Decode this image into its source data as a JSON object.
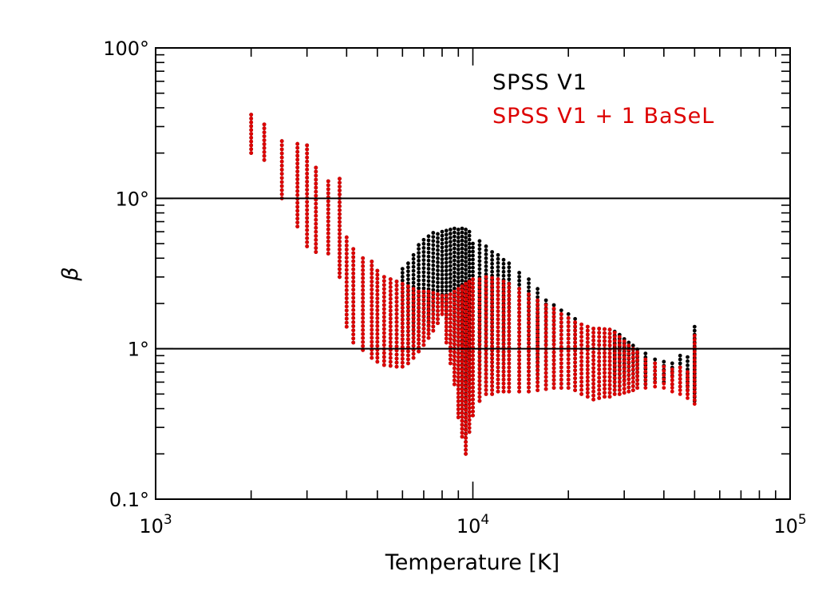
{
  "chart_data": {
    "type": "scatter",
    "xlabel": "Temperature [K]",
    "ylabel": "β",
    "x_scale": "log",
    "y_scale": "log",
    "xlim": [
      1000,
      100000
    ],
    "ylim": [
      0.1,
      100
    ],
    "x_tick_labels": [
      {
        "value": 1000,
        "base": "10",
        "exp": "3"
      },
      {
        "value": 10000,
        "base": "10",
        "exp": "4"
      },
      {
        "value": 100000,
        "base": "10",
        "exp": "5"
      }
    ],
    "y_tick_labels": [
      {
        "value": 0.1,
        "label": "0.1°"
      },
      {
        "value": 1,
        "label": "1°"
      },
      {
        "value": 10,
        "label": "10°"
      },
      {
        "value": 100,
        "label": "100°"
      }
    ],
    "reference_lines": [
      1,
      10
    ],
    "legend_position": "top-right",
    "colors": {
      "axes": "#000000",
      "series_1": "#000000",
      "series_2": "#dd0000"
    },
    "series": [
      {
        "name": "SPSS V1",
        "color": "#000000",
        "columns": [
          [
            2000,
            20,
            36
          ],
          [
            2200,
            18,
            31
          ],
          [
            2500,
            10,
            24
          ],
          [
            2800,
            6.5,
            23
          ],
          [
            3000,
            4.8,
            22.5
          ],
          [
            3200,
            4.4,
            16
          ],
          [
            3500,
            4.3,
            13
          ],
          [
            3800,
            3.0,
            13.5
          ],
          [
            4000,
            1.4,
            5.5
          ],
          [
            4200,
            1.1,
            4.6
          ],
          [
            4500,
            0.98,
            4.0
          ],
          [
            4800,
            0.87,
            3.8
          ],
          [
            5000,
            0.82,
            3.3
          ],
          [
            5250,
            0.78,
            3.0
          ],
          [
            5500,
            0.77,
            2.9
          ],
          [
            5750,
            0.76,
            2.8
          ],
          [
            6000,
            0.76,
            3.4
          ],
          [
            6250,
            0.8,
            3.7
          ],
          [
            6500,
            0.87,
            4.2
          ],
          [
            6750,
            0.96,
            4.9
          ],
          [
            7000,
            1.06,
            5.3
          ],
          [
            7250,
            1.18,
            5.6
          ],
          [
            7500,
            1.32,
            5.9
          ],
          [
            7750,
            1.48,
            5.8
          ],
          [
            8000,
            1.7,
            6.0
          ],
          [
            8250,
            1.1,
            6.1
          ],
          [
            8500,
            0.8,
            6.2
          ],
          [
            8750,
            0.58,
            6.3
          ],
          [
            9000,
            0.35,
            6.2
          ],
          [
            9250,
            0.26,
            6.3
          ],
          [
            9500,
            0.2,
            6.2
          ],
          [
            9750,
            0.28,
            6.0
          ],
          [
            10000,
            0.36,
            5.0
          ],
          [
            10500,
            0.45,
            5.2
          ],
          [
            11000,
            0.5,
            4.8
          ],
          [
            11500,
            0.5,
            4.4
          ],
          [
            12000,
            0.52,
            4.2
          ],
          [
            12500,
            0.52,
            3.9
          ],
          [
            13000,
            0.52,
            3.7
          ],
          [
            14000,
            0.52,
            3.2
          ],
          [
            15000,
            0.52,
            2.9
          ],
          [
            16000,
            0.53,
            2.5
          ],
          [
            17000,
            0.54,
            2.1
          ],
          [
            18000,
            0.55,
            1.95
          ],
          [
            19000,
            0.55,
            1.8
          ],
          [
            20000,
            0.55,
            1.7
          ],
          [
            21000,
            0.53,
            1.58
          ],
          [
            22000,
            0.5,
            1.45
          ],
          [
            23000,
            0.48,
            1.4
          ],
          [
            24000,
            0.46,
            1.36
          ],
          [
            25000,
            0.47,
            1.36
          ],
          [
            26000,
            0.48,
            1.35
          ],
          [
            27000,
            0.48,
            1.34
          ],
          [
            28000,
            0.5,
            1.3
          ],
          [
            29000,
            0.5,
            1.24
          ],
          [
            30000,
            0.51,
            1.16
          ],
          [
            31000,
            0.52,
            1.1
          ],
          [
            32000,
            0.53,
            1.05
          ],
          [
            33000,
            0.55,
            0.99
          ],
          [
            35000,
            0.58,
            0.93
          ],
          [
            37500,
            0.6,
            0.85
          ],
          [
            40000,
            0.6,
            0.82
          ],
          [
            42500,
            0.58,
            0.8
          ],
          [
            45000,
            0.56,
            0.9
          ],
          [
            47500,
            0.5,
            0.88
          ],
          [
            50000,
            0.45,
            1.4
          ]
        ]
      },
      {
        "name": "SPSS V1 + 1 BaSeL",
        "color": "#dd0000",
        "columns": [
          [
            2000,
            20,
            36
          ],
          [
            2200,
            18,
            31
          ],
          [
            2500,
            10,
            24
          ],
          [
            2800,
            6.5,
            23
          ],
          [
            3000,
            4.8,
            22.5
          ],
          [
            3200,
            4.4,
            16
          ],
          [
            3500,
            4.3,
            13
          ],
          [
            3800,
            3.0,
            13.5
          ],
          [
            4000,
            1.4,
            5.5
          ],
          [
            4200,
            1.1,
            4.6
          ],
          [
            4500,
            0.98,
            4.0
          ],
          [
            4800,
            0.87,
            3.8
          ],
          [
            5000,
            0.82,
            3.3
          ],
          [
            5250,
            0.78,
            3.0
          ],
          [
            5500,
            0.77,
            2.9
          ],
          [
            5750,
            0.76,
            2.8
          ],
          [
            6000,
            0.76,
            2.7
          ],
          [
            6250,
            0.8,
            2.6
          ],
          [
            6500,
            0.87,
            2.5
          ],
          [
            6750,
            0.96,
            2.4
          ],
          [
            7000,
            1.06,
            2.4
          ],
          [
            7250,
            1.18,
            2.4
          ],
          [
            7500,
            1.32,
            2.35
          ],
          [
            7750,
            1.48,
            2.3
          ],
          [
            8000,
            1.7,
            2.25
          ],
          [
            8250,
            1.1,
            2.25
          ],
          [
            8500,
            0.8,
            2.3
          ],
          [
            8750,
            0.58,
            2.4
          ],
          [
            9000,
            0.35,
            2.5
          ],
          [
            9250,
            0.26,
            2.6
          ],
          [
            9500,
            0.2,
            2.7
          ],
          [
            9750,
            0.28,
            2.8
          ],
          [
            10000,
            0.36,
            2.9
          ],
          [
            10500,
            0.45,
            2.9
          ],
          [
            11000,
            0.5,
            3.0
          ],
          [
            11500,
            0.5,
            2.95
          ],
          [
            12000,
            0.52,
            2.9
          ],
          [
            12500,
            0.52,
            2.8
          ],
          [
            13000,
            0.52,
            2.7
          ],
          [
            14000,
            0.52,
            2.5
          ],
          [
            15000,
            0.52,
            2.3
          ],
          [
            16000,
            0.53,
            2.1
          ],
          [
            17000,
            0.54,
            1.95
          ],
          [
            18000,
            0.55,
            1.85
          ],
          [
            19000,
            0.55,
            1.7
          ],
          [
            20000,
            0.55,
            1.6
          ],
          [
            21000,
            0.53,
            1.5
          ],
          [
            22000,
            0.5,
            1.45
          ],
          [
            23000,
            0.48,
            1.4
          ],
          [
            24000,
            0.46,
            1.36
          ],
          [
            25000,
            0.47,
            1.36
          ],
          [
            26000,
            0.48,
            1.35
          ],
          [
            27000,
            0.48,
            1.34
          ],
          [
            28000,
            0.5,
            1.28
          ],
          [
            29000,
            0.5,
            1.2
          ],
          [
            30000,
            0.51,
            1.12
          ],
          [
            31000,
            0.52,
            1.05
          ],
          [
            32000,
            0.53,
            1.0
          ],
          [
            33000,
            0.55,
            0.95
          ],
          [
            35000,
            0.55,
            0.85
          ],
          [
            37500,
            0.56,
            0.8
          ],
          [
            40000,
            0.55,
            0.76
          ],
          [
            42500,
            0.52,
            0.73
          ],
          [
            45000,
            0.5,
            0.75
          ],
          [
            47500,
            0.47,
            0.7
          ],
          [
            50000,
            0.43,
            1.22
          ]
        ]
      }
    ]
  }
}
